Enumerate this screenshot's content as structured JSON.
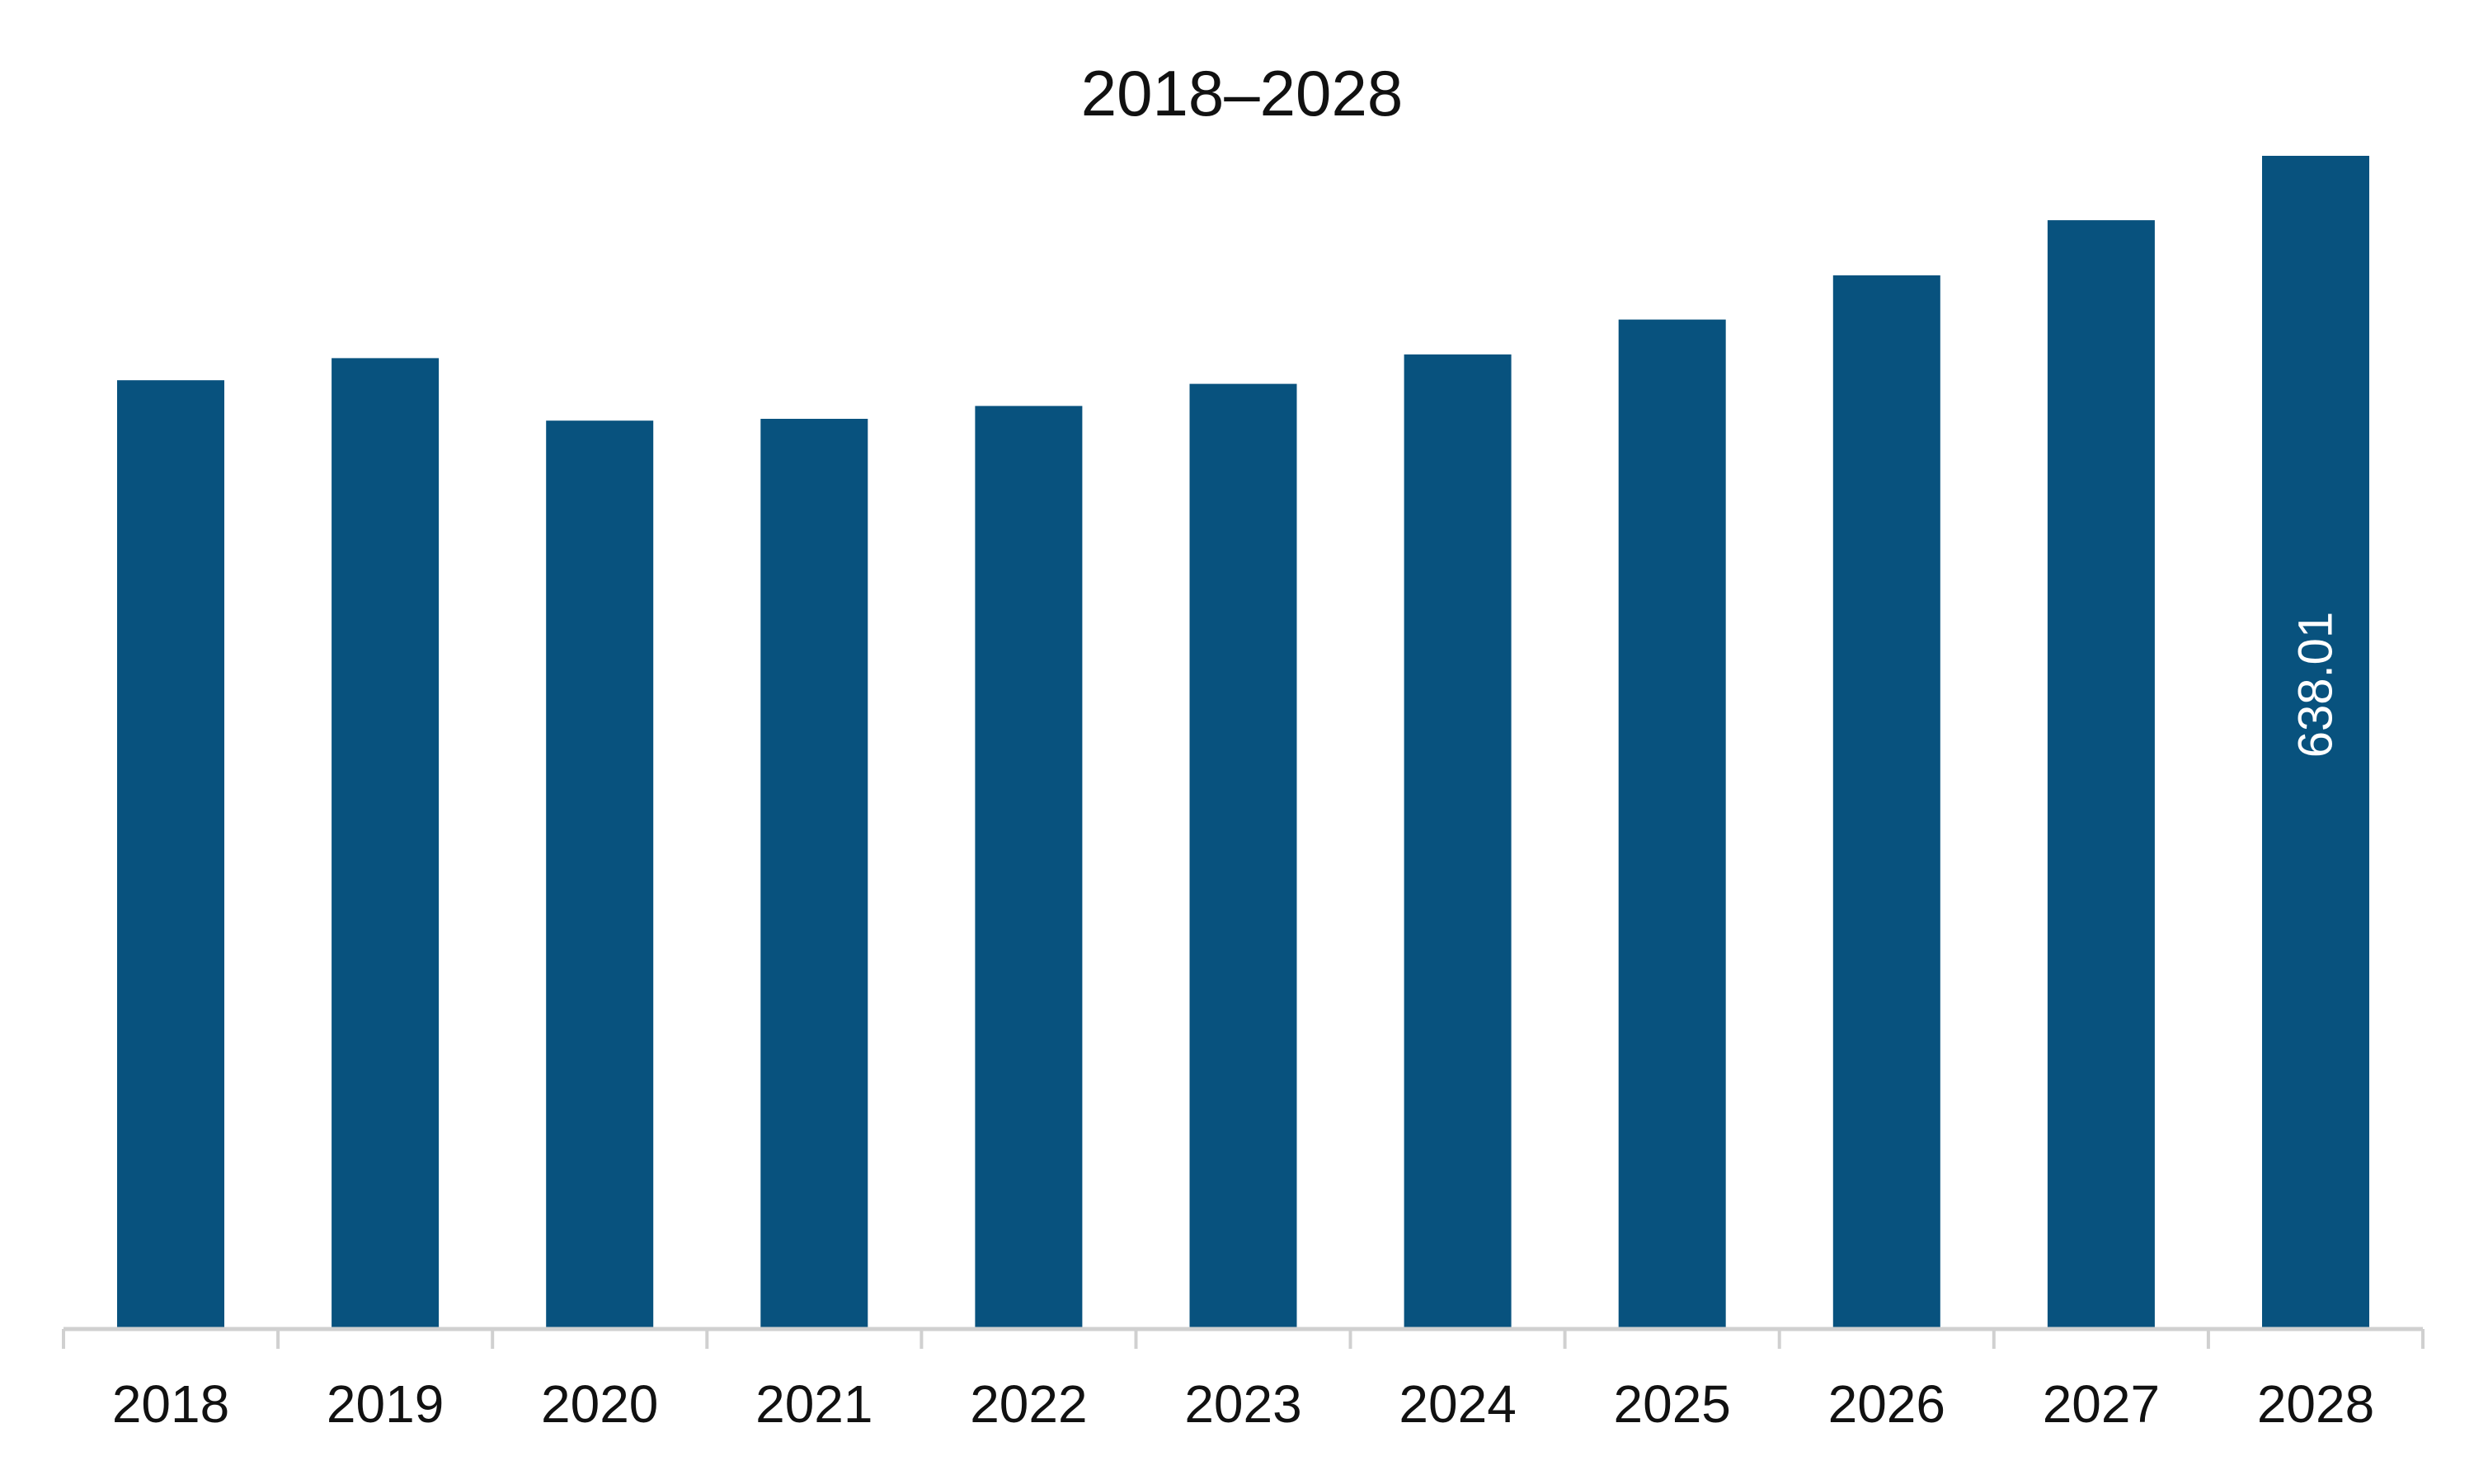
{
  "chart_data": {
    "type": "bar",
    "title": "2018–2028",
    "xlabel": "",
    "ylabel": "",
    "categories": [
      "2018",
      "2019",
      "2020",
      "2021",
      "2022",
      "2023",
      "2024",
      "2025",
      "2026",
      "2027",
      "2028"
    ],
    "values": [
      516,
      528,
      494,
      495,
      502,
      514,
      530,
      549,
      573,
      603,
      638.01
    ],
    "data_labels": [
      null,
      null,
      null,
      null,
      null,
      null,
      null,
      null,
      null,
      null,
      "638.01"
    ],
    "ylim": [
      0,
      660
    ],
    "grid": false,
    "legend": "none",
    "colors": {
      "bar": "#08527e",
      "axis": "#d0d0d0",
      "text": "#111111",
      "data_label": "#ffffff"
    }
  }
}
